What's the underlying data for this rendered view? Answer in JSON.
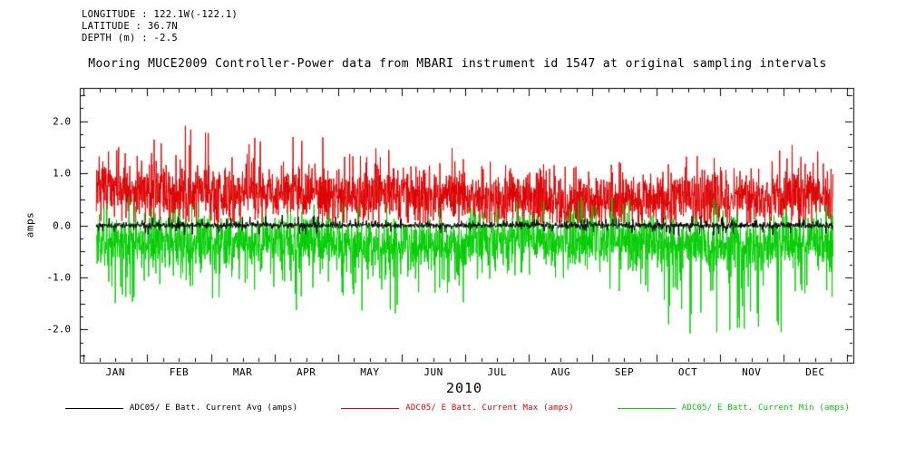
{
  "header": {
    "longitude": "LONGITUDE : 122.1W(-122.1)",
    "latitude": "LATITUDE : 36.7N",
    "depth": "DEPTH (m) : -2.5"
  },
  "chart_data": {
    "type": "line",
    "title": "Mooring MUCE2009 Controller-Power data from MBARI instrument id 1547 at original sampling intervals",
    "xlabel": "2010",
    "ylabel": "amps",
    "ylim": [
      -2.64,
      2.64
    ],
    "yticks": [
      2.0,
      1.0,
      0.0,
      -1.0,
      -2.0
    ],
    "ytick_labels": [
      "2.0",
      "1.0",
      "0.0",
      "-1.0",
      "-2.0"
    ],
    "x_categories": [
      "JAN",
      "FEB",
      "MAR",
      "APR",
      "MAY",
      "JUN",
      "JUL",
      "AUG",
      "SEP",
      "OCT",
      "NOV",
      "DEC"
    ],
    "x_range_months": [
      -0.06,
      12.1
    ],
    "grid": false,
    "legend_position": "bottom",
    "series": [
      {
        "name": "ADC05/ E Batt. Current Avg (amps)",
        "short": "avg",
        "color": "#000000",
        "monthly_mean": [
          0,
          0,
          0,
          0,
          0,
          0,
          0,
          0,
          0,
          0,
          0,
          0
        ],
        "monthly_extreme": [
          0.15,
          0.2,
          0.18,
          0.2,
          0.15,
          0.15,
          0.12,
          0.12,
          0.15,
          0.2,
          0.2,
          0.15
        ],
        "sigma": 0.03,
        "spike_prob": 0.05,
        "spike_mode": "both",
        "clamp": [
          -0.35,
          0.35
        ],
        "samples": 2200
      },
      {
        "name": "ADC05/ E Batt. Current Max (amps)",
        "short": "max",
        "color": "#dd0000",
        "monthly_mean": [
          0.65,
          0.62,
          0.6,
          0.6,
          0.58,
          0.55,
          0.48,
          0.45,
          0.45,
          0.5,
          0.52,
          0.55
        ],
        "monthly_extreme": [
          1.6,
          2.0,
          1.7,
          1.7,
          1.6,
          1.5,
          1.25,
          1.2,
          1.3,
          1.4,
          1.5,
          1.6
        ],
        "sigma": 0.26,
        "spike_prob": 0.045,
        "spike_mode": "toward",
        "clamp": [
          0.05,
          2.05
        ],
        "samples": 2600
      },
      {
        "name": "ADC05/ E Batt. Current Min (amps)",
        "short": "min",
        "color": "#00cc00",
        "monthly_mean": [
          -0.33,
          -0.3,
          -0.3,
          -0.35,
          -0.4,
          -0.38,
          -0.25,
          -0.25,
          -0.3,
          -0.35,
          -0.35,
          -0.3
        ],
        "monthly_extreme": [
          -1.5,
          -1.2,
          -1.45,
          -1.7,
          -1.7,
          -1.6,
          -1.05,
          -1.1,
          -1.3,
          -2.25,
          -2.2,
          -1.4
        ],
        "sigma": 0.26,
        "spike_prob": 0.055,
        "spike_mode": "toward",
        "clamp": [
          -2.3,
          0.55
        ],
        "samples": 2600
      }
    ]
  }
}
